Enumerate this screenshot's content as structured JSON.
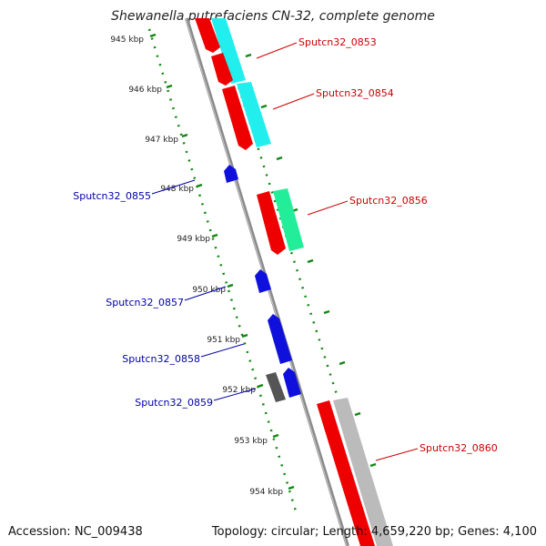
{
  "title": "Shewanella putrefaciens CN-32, complete genome",
  "footer": {
    "accession": "Accession: NC_009438",
    "summary": "Topology: circular; Length: 4,659,220 bp; Genes: 4,100"
  },
  "colors": {
    "forward_gene_label": "#cc0000",
    "reverse_gene_label": "#0000aa",
    "backbone": "#888888",
    "ruler": "#118811",
    "cds_red": "#ee0000",
    "cds_blue": "#1010dd",
    "cds_grey": "#555555",
    "feature_cyan": "#22eeee",
    "feature_green": "#22ee99",
    "feature_lightgrey": "#bbbbbb"
  },
  "ruler_ticks": [
    "945 kbp",
    "946 kbp",
    "947 kbp",
    "948 kbp",
    "949 kbp",
    "950 kbp",
    "951 kbp",
    "952 kbp",
    "953 kbp",
    "954 kbp"
  ],
  "gene_labels": {
    "forward": [
      "Sputcn32_0853",
      "Sputcn32_0854",
      "Sputcn32_0856",
      "Sputcn32_0860"
    ],
    "reverse": [
      "Sputcn32_0855",
      "Sputcn32_0857",
      "Sputcn32_0858",
      "Sputcn32_0859"
    ]
  }
}
